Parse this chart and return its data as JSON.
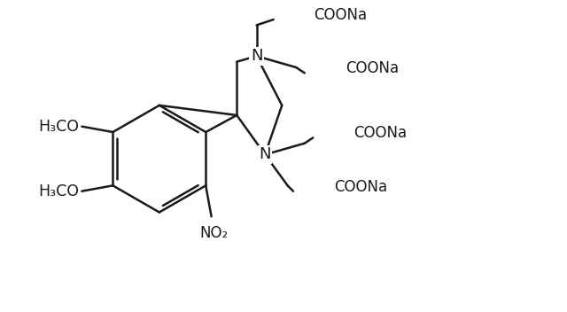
{
  "bg_color": "#ffffff",
  "line_color": "#1a1a1a",
  "line_width": 1.8,
  "font_size": 12.5,
  "figsize": [
    6.4,
    3.52
  ],
  "dpi": 100,
  "xlim": [
    0,
    10
  ],
  "ylim": [
    0,
    5.5
  ]
}
